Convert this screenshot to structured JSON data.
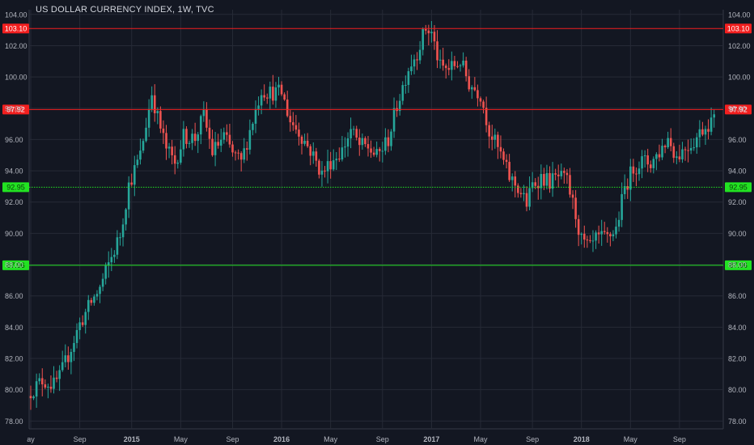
{
  "title": "US DOLLAR CURRENCY INDEX, 1W, TVC",
  "colors": {
    "background": "#131722",
    "grid": "#262a36",
    "axis_text": "#b2b5be",
    "up": "#26a69a",
    "down": "#ef5350",
    "resistance": "#f21f1f",
    "support": "#22e222"
  },
  "chart_data": {
    "type": "candlestick",
    "ylim": [
      77.5,
      104.3
    ],
    "y_ticks": [
      "78.00",
      "80.00",
      "82.00",
      "84.00",
      "86.00",
      "88.00",
      "90.00",
      "92.00",
      "94.00",
      "96.00",
      "98.00",
      "100.00",
      "102.00",
      "104.00"
    ],
    "x_ticks": [
      {
        "label": "ay",
        "t": 0
      },
      {
        "label": "Sep",
        "t": 17
      },
      {
        "label": "2015",
        "t": 35
      },
      {
        "label": "May",
        "t": 52
      },
      {
        "label": "Sep",
        "t": 70
      },
      {
        "label": "2016",
        "t": 87
      },
      {
        "label": "May",
        "t": 104
      },
      {
        "label": "Sep",
        "t": 122
      },
      {
        "label": "2017",
        "t": 139
      },
      {
        "label": "May",
        "t": 156
      },
      {
        "label": "Sep",
        "t": 174
      },
      {
        "label": "2018",
        "t": 191
      },
      {
        "label": "May",
        "t": 208
      },
      {
        "label": "Sep",
        "t": 225
      }
    ],
    "weeks": 238,
    "anchors": [
      [
        0,
        79.9
      ],
      [
        4,
        80.6
      ],
      [
        8,
        80.3
      ],
      [
        10,
        80.8
      ],
      [
        13,
        82.2
      ],
      [
        17,
        84.2
      ],
      [
        21,
        85.6
      ],
      [
        24,
        86.5
      ],
      [
        27,
        88.0
      ],
      [
        31,
        89.9
      ],
      [
        34,
        93.1
      ],
      [
        38,
        95.0
      ],
      [
        42,
        99.0
      ],
      [
        44,
        97.4
      ],
      [
        47,
        95.4
      ],
      [
        50,
        94.5
      ],
      [
        53,
        96.2
      ],
      [
        57,
        96.1
      ],
      [
        60,
        97.5
      ],
      [
        63,
        95.2
      ],
      [
        67,
        96.2
      ],
      [
        70,
        95.1
      ],
      [
        73,
        94.5
      ],
      [
        76,
        96.6
      ],
      [
        80,
        99.2
      ],
      [
        83,
        99.0
      ],
      [
        87,
        99.0
      ],
      [
        90,
        97.2
      ],
      [
        93,
        96.5
      ],
      [
        97,
        95.3
      ],
      [
        101,
        93.8
      ],
      [
        104,
        94.6
      ],
      [
        108,
        95.3
      ],
      [
        111,
        96.6
      ],
      [
        114,
        95.6
      ],
      [
        117,
        95.5
      ],
      [
        120,
        94.9
      ],
      [
        124,
        96.0
      ],
      [
        127,
        98.2
      ],
      [
        131,
        100.6
      ],
      [
        134,
        101.6
      ],
      [
        137,
        103.1
      ],
      [
        139,
        102.8
      ],
      [
        142,
        100.6
      ],
      [
        145,
        100.5
      ],
      [
        149,
        101.0
      ],
      [
        152,
        99.6
      ],
      [
        156,
        98.9
      ],
      [
        159,
        96.6
      ],
      [
        163,
        95.0
      ],
      [
        166,
        93.6
      ],
      [
        169,
        92.9
      ],
      [
        172,
        91.9
      ],
      [
        174,
        93.1
      ],
      [
        177,
        93.6
      ],
      [
        180,
        93.3
      ],
      [
        183,
        93.6
      ],
      [
        186,
        93.3
      ],
      [
        189,
        91.2
      ],
      [
        191,
        89.5
      ],
      [
        194,
        89.0
      ],
      [
        196,
        89.6
      ],
      [
        200,
        89.7
      ],
      [
        203,
        90.3
      ],
      [
        206,
        92.9
      ],
      [
        209,
        94.2
      ],
      [
        212,
        94.6
      ],
      [
        215,
        94.5
      ],
      [
        218,
        95.2
      ],
      [
        221,
        96.1
      ],
      [
        224,
        94.9
      ],
      [
        227,
        95.5
      ],
      [
        230,
        95.9
      ],
      [
        233,
        96.7
      ],
      [
        236,
        97.2
      ]
    ],
    "levels": [
      {
        "value": 103.1,
        "label": "103.10",
        "color": "resistance",
        "style": "solid"
      },
      {
        "value": 97.92,
        "label": "97.92",
        "color": "resistance",
        "style": "solid"
      },
      {
        "value": 92.95,
        "label": "92.95",
        "color": "support",
        "style": "dotted"
      },
      {
        "value": 87.96,
        "label": "87.96",
        "color": "support",
        "style": "solid"
      }
    ]
  }
}
